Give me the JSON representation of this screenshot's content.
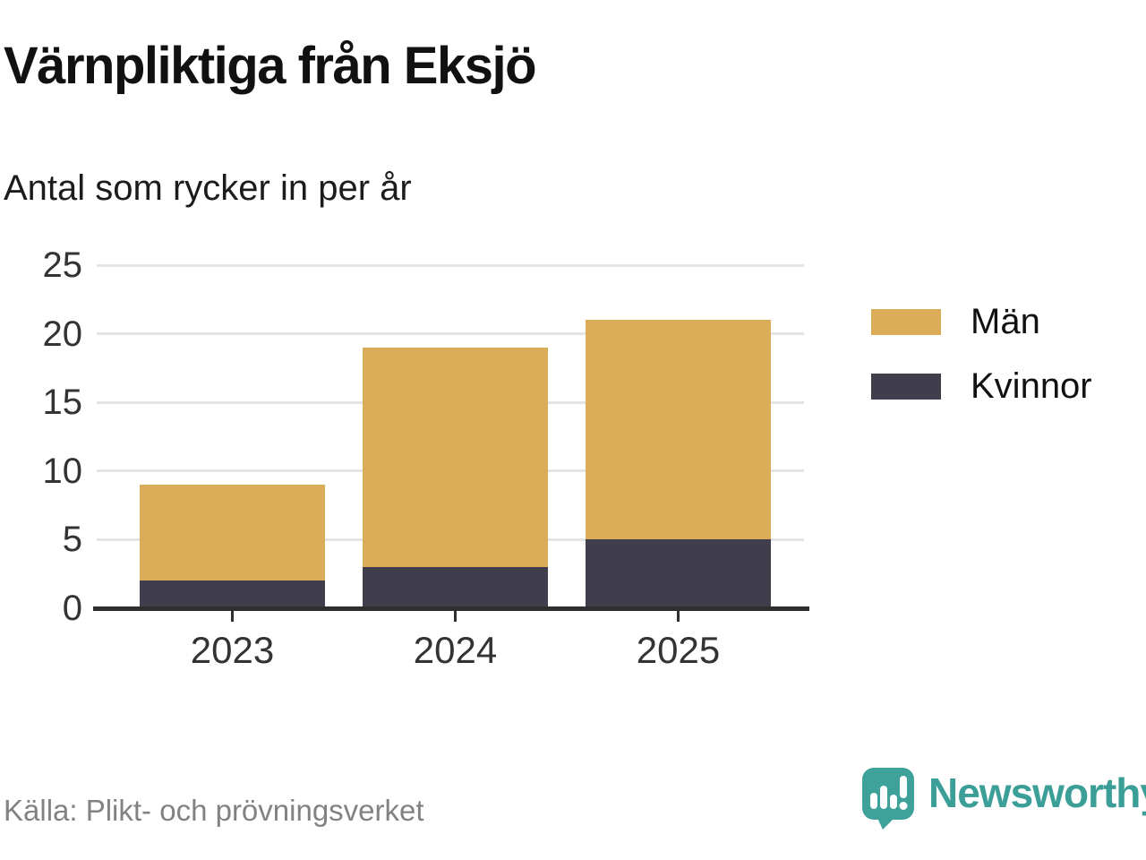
{
  "title": "Värnpliktiga från Eksjö",
  "subtitle": "Antal som rycker in per år",
  "source": "Källa: Plikt- och prövningsverket",
  "logo": {
    "name": "Newsworthy",
    "icon": "newsworthy-bubble-chart-icon",
    "color": "#3B9E97"
  },
  "colors": {
    "men": "#DCAD59",
    "women": "#403E4D",
    "grid": "#E4E4E4",
    "axis": "#2E2E2E",
    "tick_label": "#333333",
    "source_text": "#828282",
    "brand_teal": "#3B9E97"
  },
  "chart_data": {
    "type": "bar",
    "stacked": true,
    "title": "Värnpliktiga från Eksjö",
    "subtitle": "Antal som rycker in per år",
    "categories": [
      "2023",
      "2024",
      "2025"
    ],
    "series": [
      {
        "name": "Kvinnor",
        "color": "#403E4D",
        "values": [
          2,
          3,
          5
        ]
      },
      {
        "name": "Män",
        "color": "#DCAD59",
        "values": [
          7,
          16,
          16
        ]
      }
    ],
    "totals": [
      9,
      19,
      21
    ],
    "xlabel": "",
    "ylabel": "",
    "ylim": [
      0,
      25
    ],
    "yticks": [
      0,
      5,
      10,
      15,
      20,
      25
    ],
    "grid": "horizontal",
    "legend_position": "right",
    "legend_items": [
      {
        "label": "Män",
        "color": "#DCAD59"
      },
      {
        "label": "Kvinnor",
        "color": "#403E4D"
      }
    ]
  }
}
